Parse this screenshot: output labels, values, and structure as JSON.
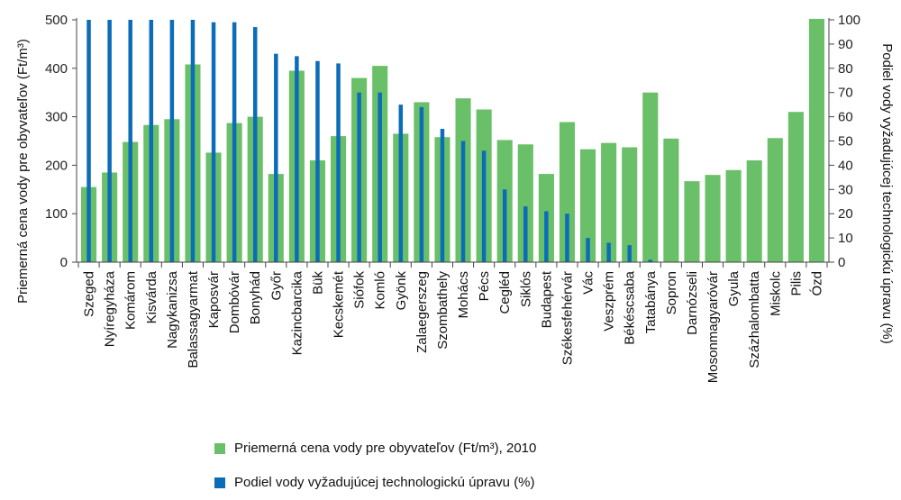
{
  "chart_data": {
    "type": "bar",
    "categories": [
      "Szeged",
      "Nyíregyháza",
      "Komárom",
      "Kisvárda",
      "Nagykanizsa",
      "Balassagyarmat",
      "Kaposvár",
      "Dombóvár",
      "Bonyhád",
      "Győr",
      "Kazincbarcika",
      "Bük",
      "Kecskemét",
      "Siófok",
      "Komló",
      "Gyönk",
      "Zalaegerszeg",
      "Szombathely",
      "Mohács",
      "Pécs",
      "Cegléd",
      "Siklós",
      "Budapest",
      "Székesfehérvár",
      "Vác",
      "Veszprém",
      "Békéscsaba",
      "Tatabánya",
      "Sopron",
      "Darnózseli",
      "Mosonmagyaróvár",
      "Gyula",
      "Százhalombatta",
      "Miskolc",
      "Pilis",
      "Ózd"
    ],
    "series": [
      {
        "name": "Priemerná cena vody pre obyvateľov (Ft/m³), 2010",
        "axis": "left",
        "color": "#6abf69",
        "values": [
          155,
          185,
          248,
          283,
          295,
          408,
          226,
          287,
          300,
          182,
          395,
          210,
          260,
          380,
          405,
          265,
          330,
          258,
          338,
          315,
          252,
          243,
          182,
          289,
          233,
          246,
          237,
          350,
          255,
          167,
          180,
          190,
          210,
          256,
          310,
          502
        ]
      },
      {
        "name": "Podiel vody vyžadujúcej technologickú úpravu (%)",
        "axis": "right",
        "color": "#0b6cb8",
        "values": [
          100,
          100,
          100,
          100,
          100,
          100,
          99,
          99,
          97,
          86,
          85,
          83,
          82,
          70,
          70,
          65,
          64,
          55,
          50,
          46,
          30,
          23,
          21,
          20,
          10,
          8,
          7,
          1,
          0,
          0,
          0,
          0,
          0,
          0,
          0,
          0
        ]
      }
    ],
    "left_axis": {
      "label": "Priemerná cena vody pre obyvateľov (Ft/m³)",
      "ylim": [
        0,
        500
      ],
      "ticks": [
        0,
        100,
        200,
        300,
        400,
        500
      ]
    },
    "right_axis": {
      "label": "Podiel vody vyžadujúcej technologickú úpravu (%)",
      "ylim": [
        0,
        100
      ],
      "ticks": [
        0,
        10,
        20,
        30,
        40,
        50,
        60,
        70,
        80,
        90,
        100
      ]
    },
    "legend_position": "bottom"
  },
  "legend": {
    "green_label": "Priemerná cena vody pre obyvateľov (Ft/m³), 2010",
    "blue_label": "Podiel vody vyžadujúcej technologickú úpravu (%)"
  }
}
